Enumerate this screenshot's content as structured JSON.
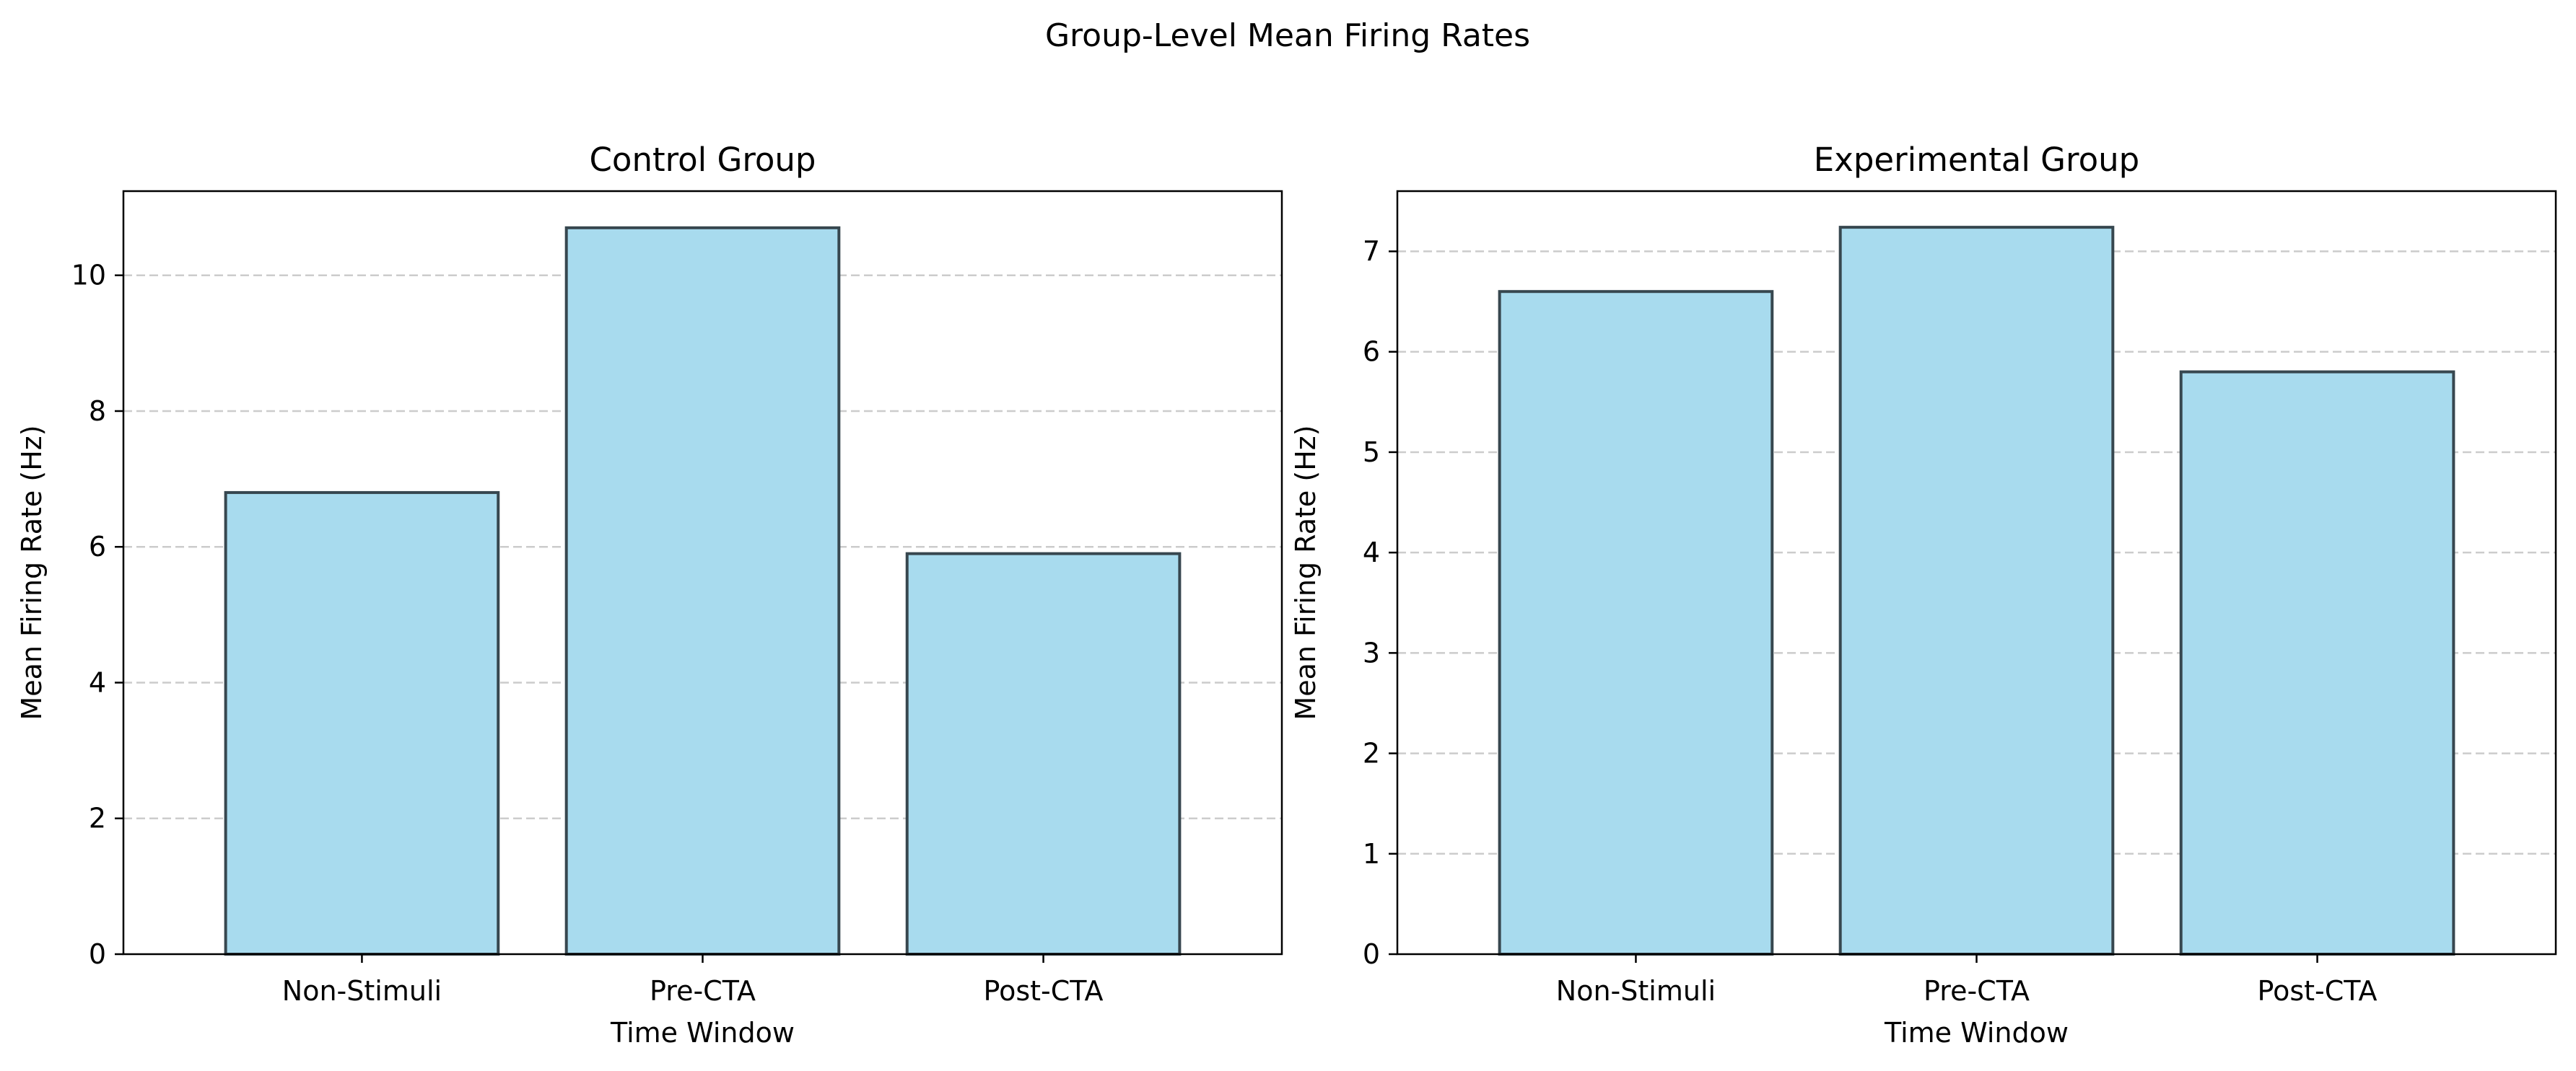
{
  "figure": {
    "suptitle": "Group-Level Mean Firing Rates"
  },
  "style": {
    "bar_fill": "#a8dbee",
    "bar_edge": "#37474f",
    "grid_color": "#cccccc",
    "axis_color": "#000000",
    "background": "#ffffff"
  },
  "chart_data": [
    {
      "type": "bar",
      "title": "Control Group",
      "xlabel": "Time Window",
      "ylabel": "Mean Firing Rate (Hz)",
      "categories": [
        "Non-Stimuli",
        "Pre-CTA",
        "Post-CTA"
      ],
      "values": [
        6.8,
        10.7,
        5.9
      ],
      "ylim": [
        0,
        11.24
      ],
      "yticks": [
        0,
        2,
        4,
        6,
        8,
        10
      ],
      "grid": "y-dashed",
      "legend": "none"
    },
    {
      "type": "bar",
      "title": "Experimental Group",
      "xlabel": "Time Window",
      "ylabel": "Mean Firing Rate (Hz)",
      "categories": [
        "Non-Stimuli",
        "Pre-CTA",
        "Post-CTA"
      ],
      "values": [
        6.6,
        7.24,
        5.8
      ],
      "ylim": [
        0,
        7.6
      ],
      "yticks": [
        0,
        1,
        2,
        3,
        4,
        5,
        6,
        7
      ],
      "grid": "y-dashed",
      "legend": "none"
    }
  ]
}
